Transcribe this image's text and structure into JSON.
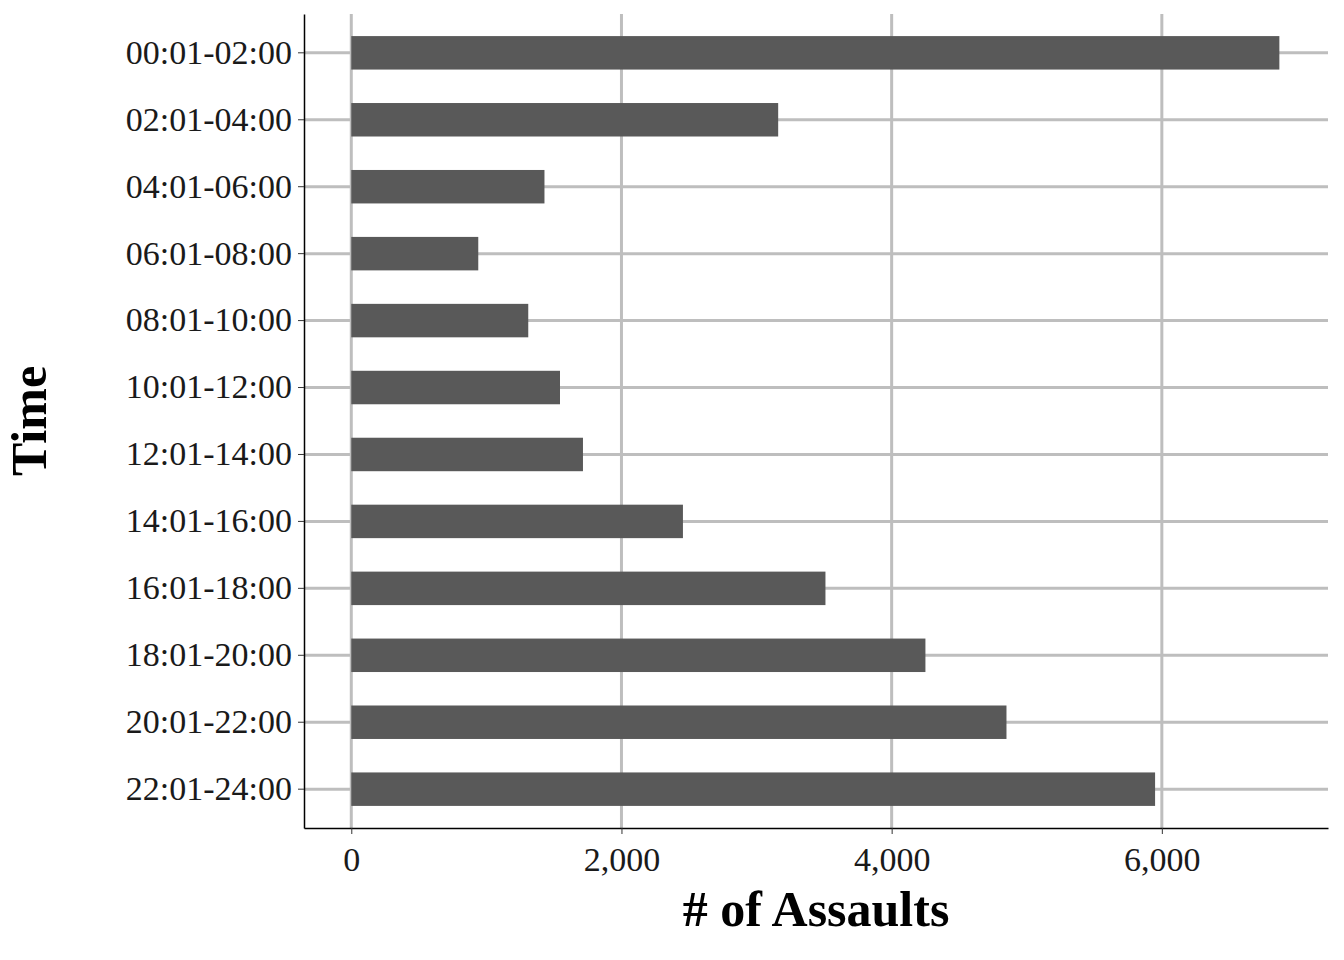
{
  "chart_data": {
    "type": "bar",
    "orientation": "horizontal",
    "x_label": "# of Assaults",
    "y_label": "Time",
    "categories": [
      "00:01-02:00",
      "02:01-04:00",
      "04:01-06:00",
      "06:01-08:00",
      "08:01-10:00",
      "10:01-12:00",
      "12:01-14:00",
      "14:01-16:00",
      "16:01-18:00",
      "18:01-20:00",
      "20:01-22:00",
      "22:01-24:00"
    ],
    "values": [
      6870,
      3160,
      1430,
      940,
      1310,
      1545,
      1715,
      2455,
      3510,
      4250,
      4850,
      5950
    ],
    "color": "#595959",
    "xlim": [
      -350,
      7230
    ],
    "xticks": [
      0,
      {
        "value": 2000,
        "label": "2,000"
      },
      {
        "value": 4000,
        "label": "4,000"
      },
      {
        "value": 6000,
        "label": "6,000"
      }
    ],
    "grid": true
  }
}
